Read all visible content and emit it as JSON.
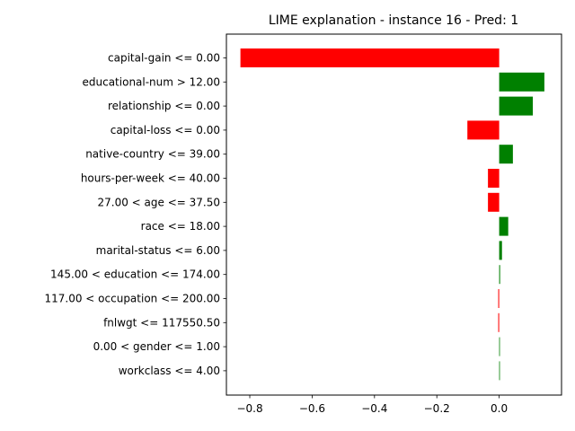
{
  "chart_data": {
    "type": "bar",
    "orientation": "horizontal",
    "title": "LIME explanation - instance 16 - Pred: 1",
    "xlabel": "",
    "ylabel": "",
    "xlim": [
      -0.875,
      0.2
    ],
    "xticks": [
      -0.8,
      -0.6,
      -0.4,
      -0.2,
      0.0
    ],
    "xtick_labels": [
      "−0.8",
      "−0.6",
      "−0.4",
      "−0.2",
      "0.0"
    ],
    "grid": false,
    "positive_color": "#008000",
    "negative_color": "#ff0000",
    "categories": [
      "capital-gain <= 0.00",
      "educational-num > 12.00",
      "relationship <= 0.00",
      "capital-loss <= 0.00",
      "native-country <= 39.00",
      "hours-per-week <= 40.00",
      "27.00 < age <= 37.50",
      "race <= 18.00",
      "marital-status <= 6.00",
      "145.00 < education <= 174.00",
      "117.00 < occupation <= 200.00",
      "fnlwgt <= 117550.50",
      "0.00 < gender <= 1.00",
      "workclass <= 4.00"
    ],
    "values": [
      -0.83,
      0.145,
      0.108,
      -0.102,
      0.044,
      -0.036,
      -0.036,
      0.029,
      0.009,
      0.003,
      -0.003,
      -0.003,
      0.002,
      0.0
    ]
  }
}
